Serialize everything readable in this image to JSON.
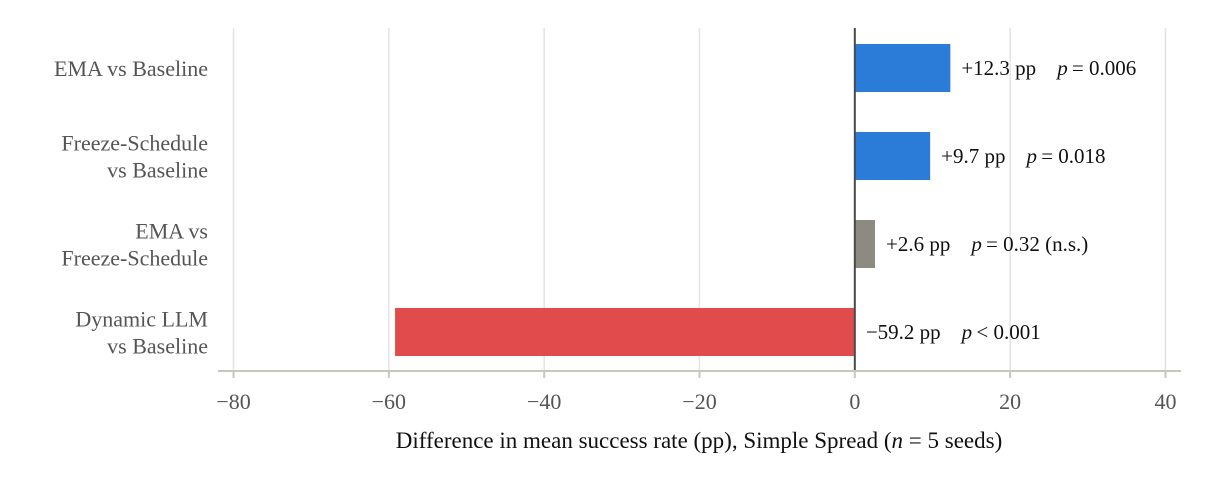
{
  "chart_data": {
    "type": "bar",
    "orientation": "horizontal",
    "categories": [
      [
        "EMA vs Baseline"
      ],
      [
        "Freeze-Schedule",
        "vs Baseline"
      ],
      [
        "EMA vs",
        "Freeze-Schedule"
      ],
      [
        "Dynamic LLM",
        "vs Baseline"
      ]
    ],
    "values": [
      12.3,
      9.7,
      2.6,
      -59.2
    ],
    "bar_labels": [
      "+12.3 pp",
      "+9.7 pp",
      "+2.6 pp",
      "−59.2 pp"
    ],
    "p_labels": [
      "= 0.006",
      "= 0.018",
      "= 0.32 (n.s.)",
      "< 0.001"
    ],
    "p_symbol": "p",
    "bar_colors": [
      "#2b7bd8",
      "#2b7bd8",
      "#8d8a82",
      "#e24b4b"
    ],
    "xlim": [
      -82,
      42
    ],
    "xticks": [
      -80,
      -60,
      -40,
      -20,
      0,
      20,
      40
    ],
    "xtick_labels": [
      "−80",
      "−60",
      "−40",
      "−20",
      "0",
      "20",
      "40"
    ],
    "xlabel_prefix": "Difference in mean success rate (pp), Simple Spread (",
    "xlabel_var": "n",
    "xlabel_suffix": " = 5 seeds)",
    "grid": "vertical",
    "legend": "none"
  }
}
